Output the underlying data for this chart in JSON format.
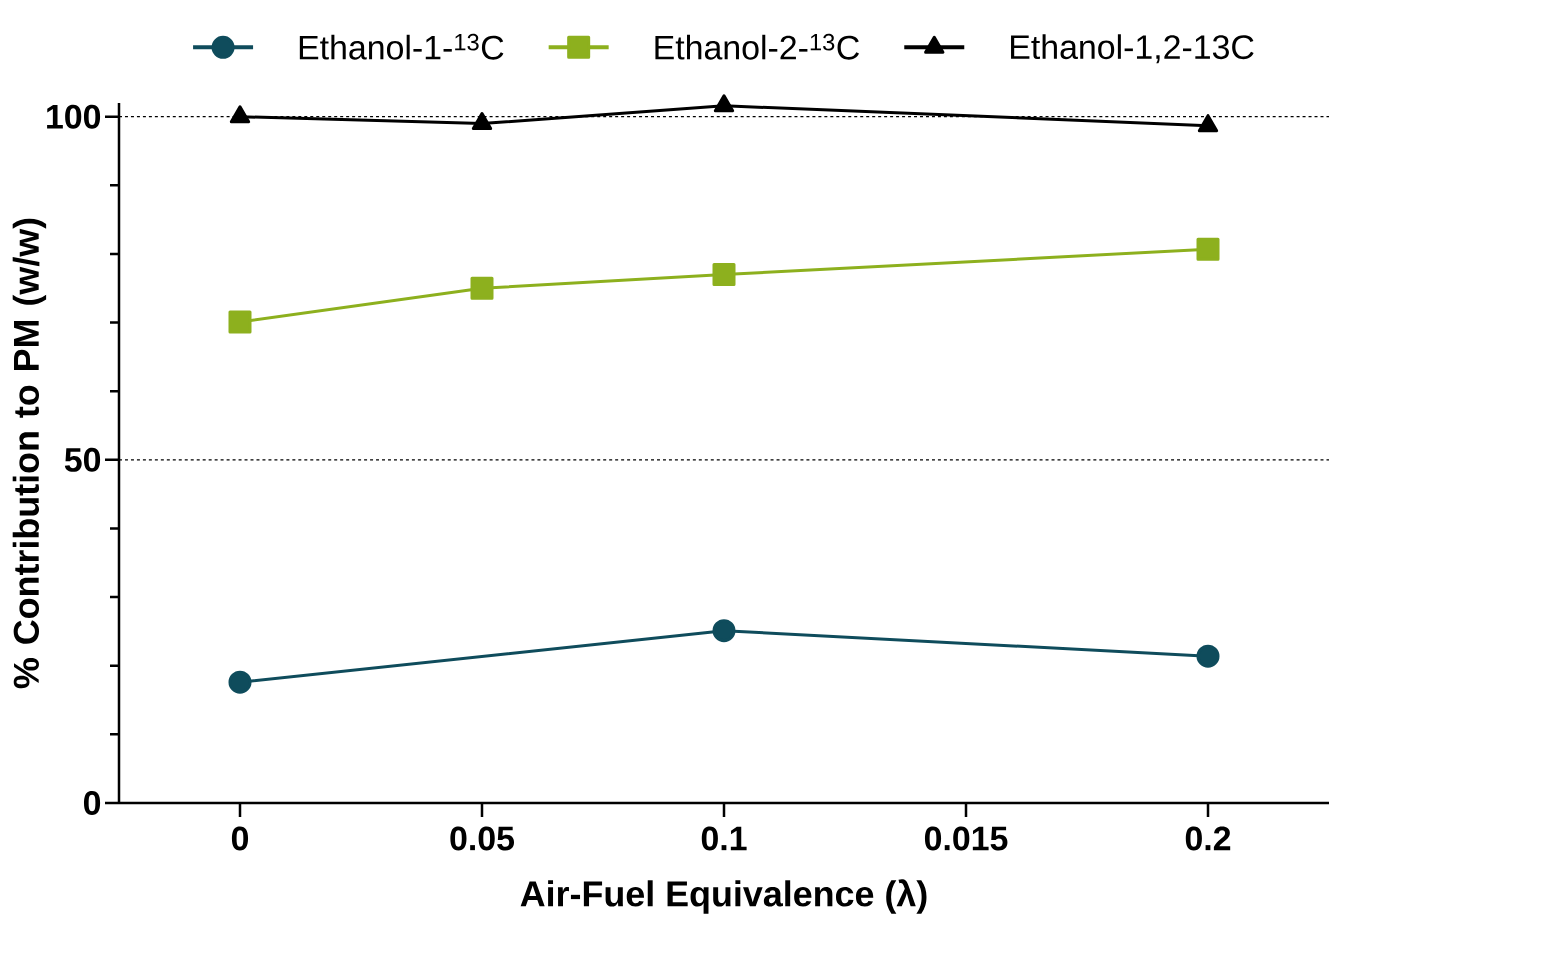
{
  "chart_data": {
    "type": "line",
    "xlabel": "Air-Fuel Equivalence (λ)",
    "ylabel": "% Contribution to PM (w/w)",
    "categories": [
      "0",
      "0.05",
      "0.1",
      "0.015",
      "0.2"
    ],
    "series": [
      {
        "name": "Ethanol-1-$^{13}$C",
        "color": "#0f4c5c",
        "marker": "circle",
        "values": [
          17.6,
          null,
          25.1,
          null,
          21.4
        ]
      },
      {
        "name": "Ethanol-2-$^{13}$C",
        "color": "#8db01e",
        "marker": "square",
        "values": [
          70.1,
          75.0,
          77.0,
          null,
          80.7
        ]
      },
      {
        "name": "Ethanol-1,2-13C",
        "color": "#000000",
        "marker": "triangle",
        "values": [
          100,
          99.0,
          101.6,
          null,
          98.7
        ]
      }
    ],
    "ylim": [
      0,
      102
    ],
    "yticks": [
      0,
      {
        "value": 10,
        "label": null
      },
      {
        "value": 20,
        "label": null
      },
      {
        "value": 30,
        "label": null
      },
      {
        "value": 40,
        "label": null
      },
      50,
      {
        "value": 60,
        "label": null
      },
      {
        "value": 70,
        "label": null
      },
      {
        "value": 80,
        "label": null
      },
      {
        "value": 90,
        "label": null
      },
      100
    ],
    "grid": "y",
    "legend": "top",
    "line_style": "solid"
  }
}
